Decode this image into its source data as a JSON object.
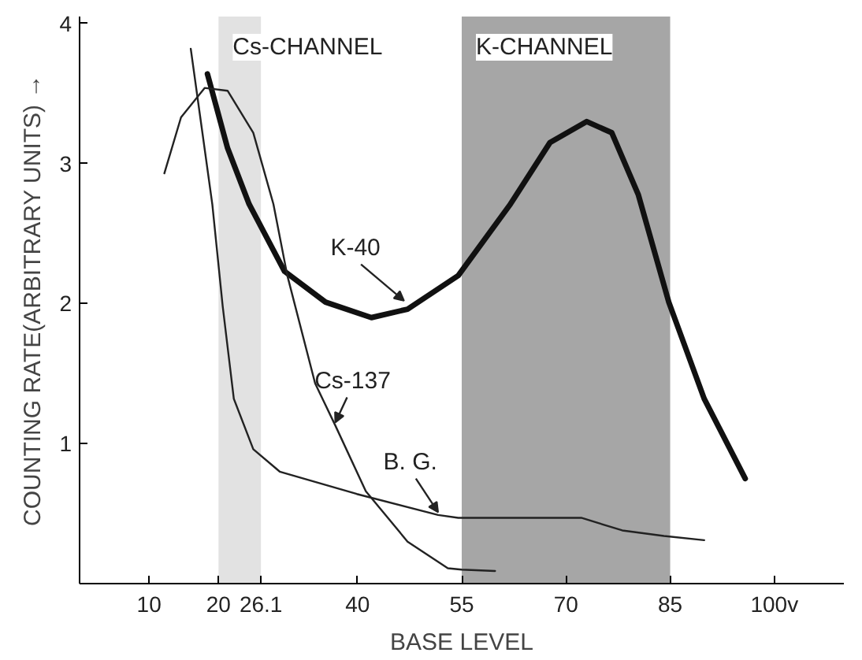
{
  "chart_data": {
    "type": "line",
    "xlabel": "BASE LEVEL",
    "ylabel": "COUNTING RATE(ARBITRARY UNITS) →",
    "xlim": [
      0,
      110
    ],
    "ylim": [
      0,
      4.05
    ],
    "xticks": [
      10,
      20,
      26.1,
      40,
      55,
      70,
      85,
      {
        "value": 100,
        "label": "100v"
      }
    ],
    "yticks": [
      1,
      2,
      3,
      4
    ],
    "grid": false,
    "marker": "none",
    "line_style": "solid",
    "bands": [
      {
        "axis": "x",
        "from": 20,
        "to": 26.1,
        "label": "Cs-CHANNEL",
        "color": "#e2e2e2"
      },
      {
        "axis": "x",
        "from": 55,
        "to": 85,
        "label": "K-CHANNEL",
        "color": "#a6a6a6"
      }
    ],
    "series": [
      {
        "color": "#111111",
        "x": [
          18.4,
          21.3,
          24.4,
          29.5,
          35.4,
          42,
          47.2,
          54.5,
          62,
          67.7,
          73,
          76.6,
          80.4,
          84.8,
          89.9,
          95.8
        ],
        "values": [
          3.64,
          3.11,
          2.71,
          2.23,
          2.01,
          1.9,
          1.96,
          2.2,
          2.71,
          3.15,
          3.3,
          3.22,
          2.78,
          2.01,
          1.32,
          0.75
        ]
      },
      {
        "color": "#222222",
        "x": [
          12.2,
          14.6,
          18,
          21.3,
          25,
          27.9,
          29.9,
          33.9,
          36.8,
          41.2,
          47.2,
          53,
          55,
          59.8
        ],
        "values": [
          2.93,
          3.33,
          3.54,
          3.52,
          3.22,
          2.71,
          2.2,
          1.43,
          1.13,
          0.66,
          0.3,
          0.11,
          0.1,
          0.09
        ]
      },
      {
        "color": "#222222",
        "x": [
          16,
          19.1,
          20.6,
          22.2,
          25,
          28.8,
          39.9,
          51.6,
          54.5,
          72.2,
          78.1,
          84.1,
          89.9
        ],
        "values": [
          3.82,
          2.71,
          1.98,
          1.32,
          0.96,
          0.8,
          0.64,
          0.49,
          0.47,
          0.47,
          0.38,
          0.34,
          0.31
        ]
      }
    ],
    "annotations": [
      {
        "text": "K-40",
        "x": 46.7,
        "y": 2.0
      },
      {
        "text": "Cs-137",
        "x": 36.8,
        "y": 1.13
      },
      {
        "text": "B. G.",
        "x": 51.6,
        "y": 0.49
      }
    ]
  }
}
